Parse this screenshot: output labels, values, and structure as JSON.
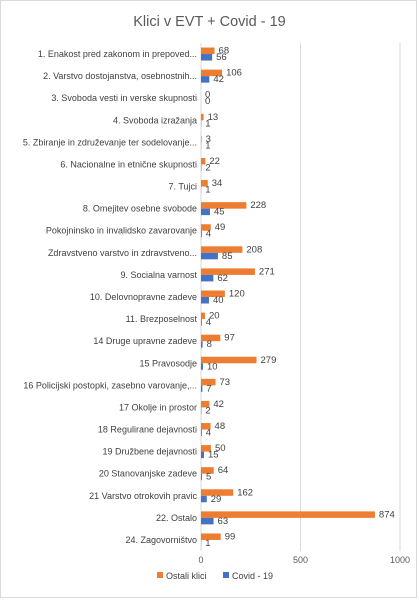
{
  "chart_data": {
    "type": "bar",
    "orientation": "horizontal",
    "title": "Klici v EVT + Covid - 19",
    "categories": [
      "1.  Enakost pred zakonom in prepoved...",
      "2.  Varstvo dostojanstva, osebnostnih...",
      "3. Svoboda vesti in verske skupnosti",
      "4. Svoboda izražanja",
      "5.  Zbiranje in združevanje ter sodelovanje...",
      "6.  Nacionalne in etnične skupnosti",
      "7.  Tujci",
      "8. Omejitev osebne svobode",
      "Pokojninsko in invalidsko zavarovanje",
      "Zdravstveno varstvo in zdravstveno...",
      "9. Socialna varnost",
      "10. Delovnopravne zadeve",
      "11. Brezposelnost",
      "14  Druge upravne zadeve",
      "15  Pravosodje",
      "16  Policijski postopki, zasebno varovanje,...",
      "17  Okolje in prostor",
      "18  Regulirane dejavnosti",
      "19  Družbene dejavnosti",
      "20  Stanovanjske zadeve",
      "21  Varstvo otrokovih pravic",
      "22. Ostalo",
      "24. Zagovorništvo"
    ],
    "series": [
      {
        "name": "Ostali klici",
        "color": "#ed7d31",
        "values": [
          68,
          106,
          0,
          13,
          3,
          22,
          34,
          228,
          49,
          208,
          271,
          120,
          20,
          97,
          279,
          73,
          42,
          48,
          50,
          64,
          162,
          874,
          99
        ]
      },
      {
        "name": "Covid - 19",
        "color": "#4472c4",
        "values": [
          56,
          42,
          0,
          1,
          1,
          2,
          1,
          45,
          4,
          85,
          62,
          40,
          4,
          8,
          10,
          7,
          2,
          4,
          15,
          5,
          29,
          63,
          1
        ]
      }
    ],
    "xlim": [
      0,
      1000
    ],
    "xticks": [
      "0",
      "500",
      "1000"
    ],
    "grid": true,
    "legend": "bottom"
  }
}
